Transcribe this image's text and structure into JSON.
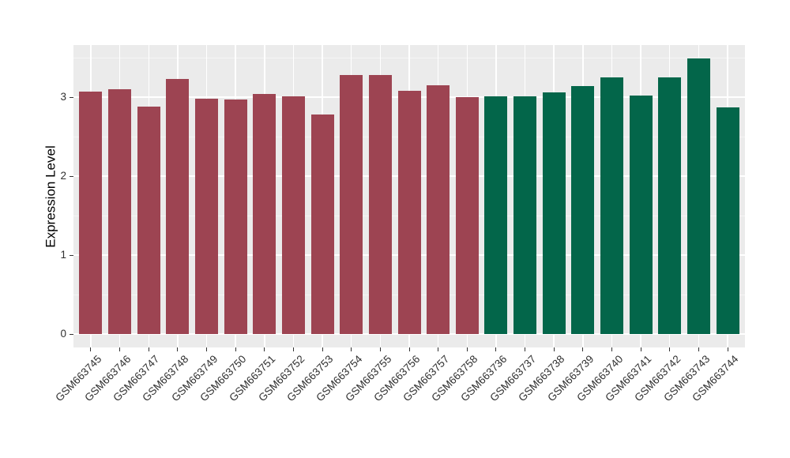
{
  "chart_data": {
    "type": "bar",
    "title": "",
    "xlabel": "",
    "ylabel": "Expression Level",
    "categories": [
      "GSM663745",
      "GSM663746",
      "GSM663747",
      "GSM663748",
      "GSM663749",
      "GSM663750",
      "GSM663751",
      "GSM663752",
      "GSM663753",
      "GSM663754",
      "GSM663755",
      "GSM663756",
      "GSM663757",
      "GSM663758",
      "GSM663736",
      "GSM663737",
      "GSM663738",
      "GSM663739",
      "GSM663740",
      "GSM663741",
      "GSM663742",
      "GSM663743",
      "GSM663744"
    ],
    "values": [
      3.07,
      3.1,
      2.88,
      3.23,
      2.98,
      2.97,
      3.04,
      3.01,
      2.78,
      3.28,
      3.28,
      3.08,
      3.15,
      3.0,
      3.01,
      3.01,
      3.06,
      3.14,
      3.25,
      3.02,
      3.25,
      3.49,
      2.87
    ],
    "groups": [
      "group1",
      "group1",
      "group1",
      "group1",
      "group1",
      "group1",
      "group1",
      "group1",
      "group1",
      "group1",
      "group1",
      "group1",
      "group1",
      "group1",
      "group2",
      "group2",
      "group2",
      "group2",
      "group2",
      "group2",
      "group2",
      "group2",
      "group2"
    ],
    "group_colors": {
      "group1": "#9D4452",
      "group2": "#03664A"
    },
    "yticks": [
      0,
      1,
      2,
      3
    ],
    "minor_yticks": [
      0.5,
      1.5,
      2.5,
      3.5
    ],
    "ylim": [
      0,
      3.66
    ],
    "grid": true,
    "legend": "none",
    "colors": {
      "panel_background": "#EBEBEB",
      "major_gridline": "#FFFFFF",
      "minor_gridline": "#F5F5F5",
      "tick_mark": "#333333",
      "tick_text": "#303030",
      "axis_title_text": "#000000"
    }
  }
}
